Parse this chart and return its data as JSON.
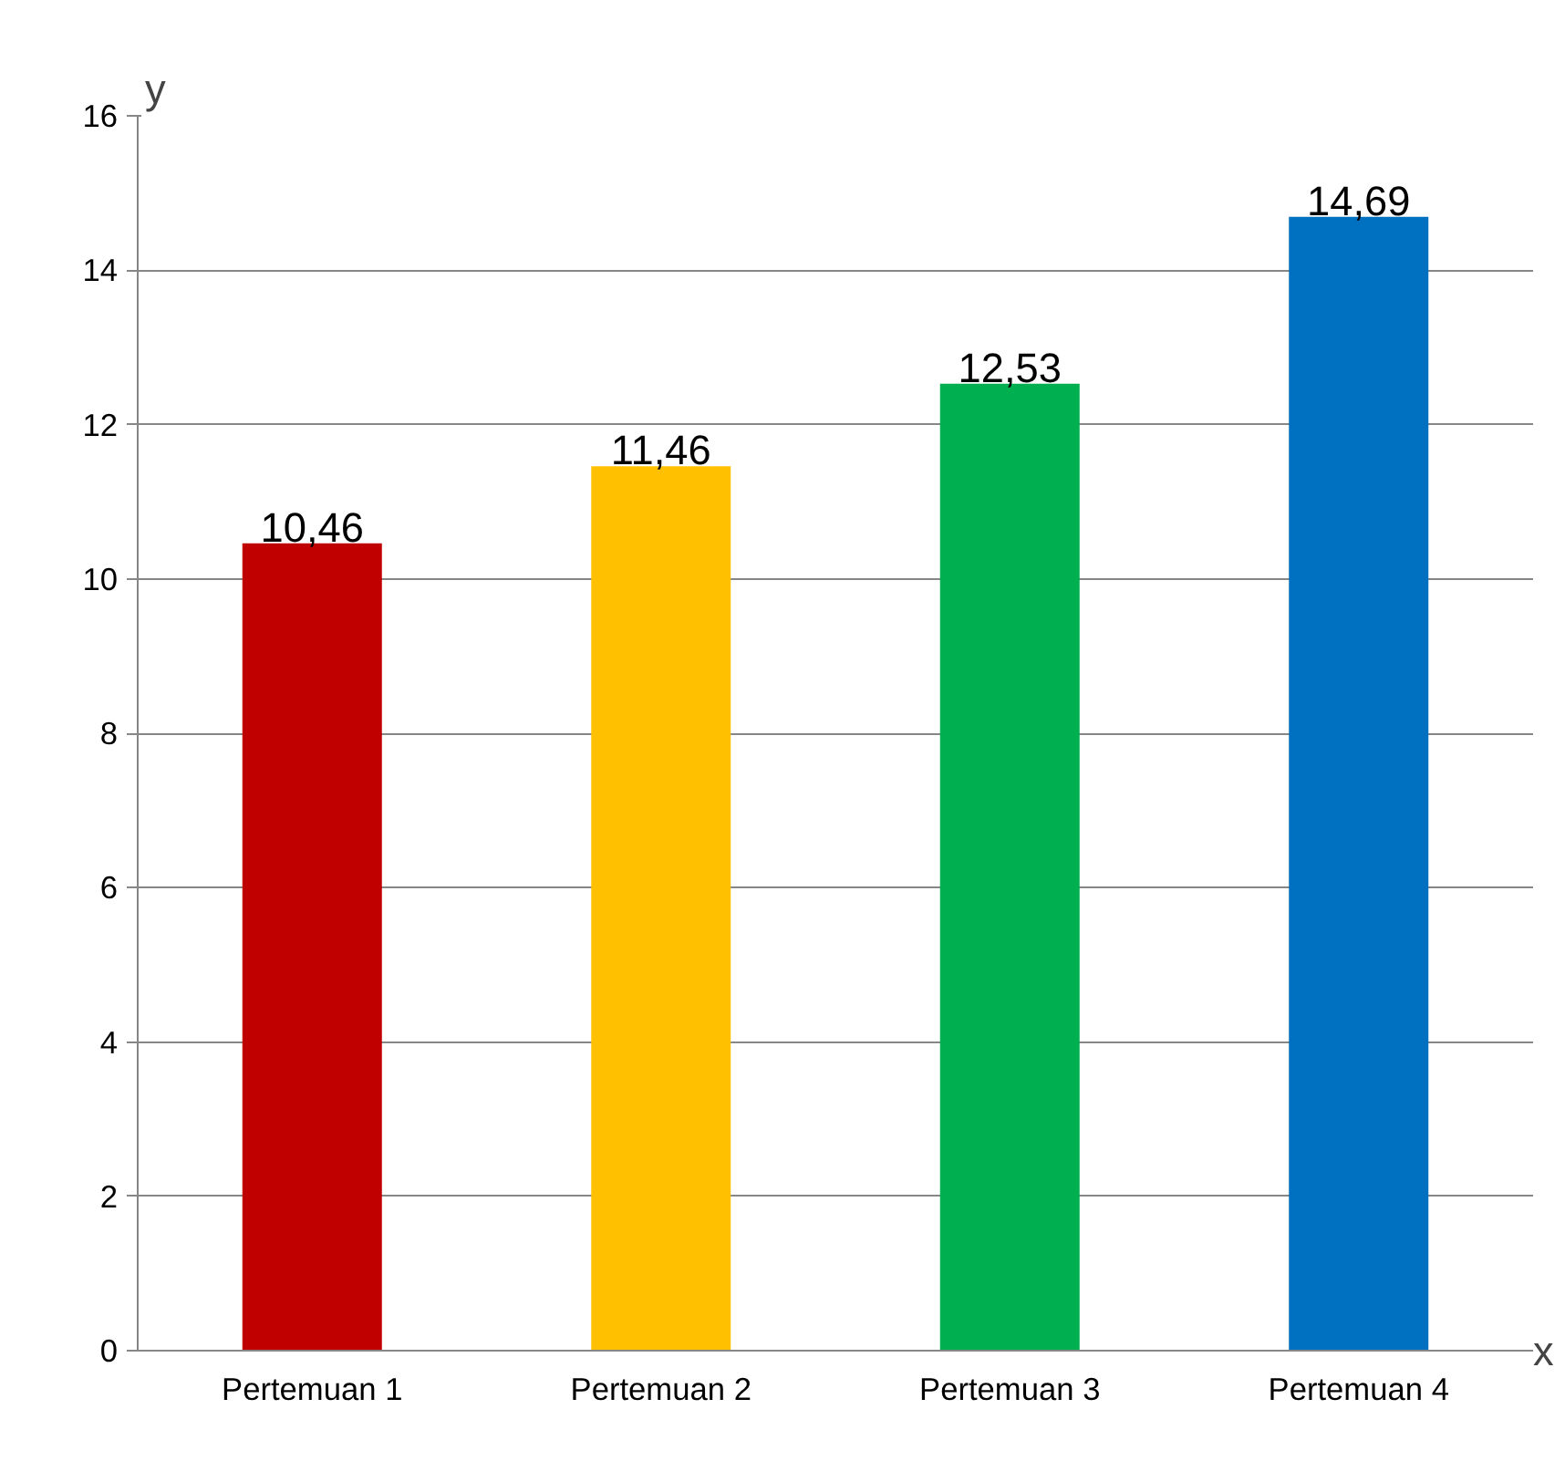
{
  "chart_data": {
    "type": "bar",
    "xlabel": "x",
    "ylabel": "y",
    "categories": [
      "Pertemuan 1",
      "Pertemuan 2",
      "Pertemuan 3",
      "Pertemuan 4"
    ],
    "values": [
      10.46,
      11.46,
      12.53,
      14.69
    ],
    "value_labels": [
      "10,46",
      "11,46",
      "12,53",
      "14,69"
    ],
    "colors": [
      "#c00000",
      "#ffc000",
      "#00b050",
      "#0070c0"
    ],
    "ylim": [
      0,
      16
    ],
    "yticks": [
      0,
      2,
      4,
      6,
      8,
      10,
      12,
      14,
      16
    ],
    "grid": "y"
  }
}
